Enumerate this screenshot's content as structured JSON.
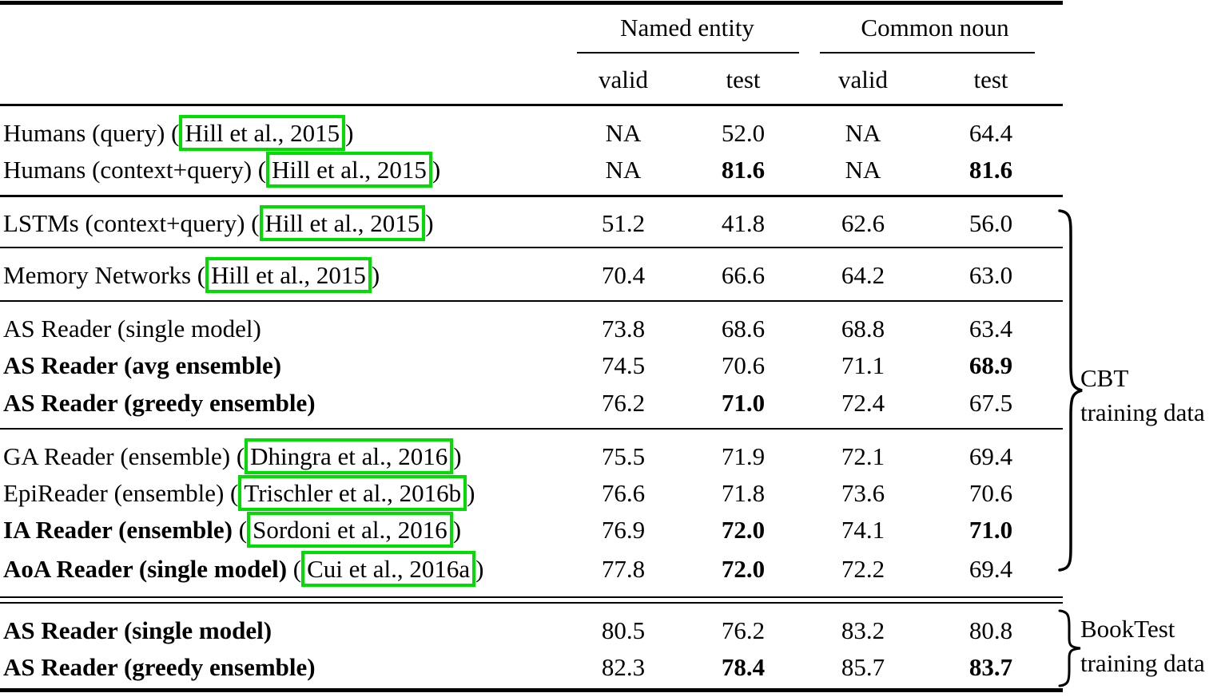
{
  "page": {
    "background_color": "#ffffff",
    "text_color": "#000000",
    "highlight_color": "#00dd00"
  },
  "table": {
    "col_groups": [
      {
        "label": "Named entity"
      },
      {
        "label": "Common noun"
      }
    ],
    "sub_headers": [
      "valid",
      "test",
      "valid",
      "test"
    ],
    "rows": [
      {
        "name": "Humans (query)",
        "name_bold": false,
        "cite": "Hill et al., 2015",
        "values": [
          "NA",
          "52.0",
          "NA",
          "64.4"
        ],
        "values_bold": [
          false,
          false,
          false,
          false
        ]
      },
      {
        "name": "Humans (context+query)",
        "name_bold": false,
        "cite": "Hill et al., 2015",
        "values": [
          "NA",
          "81.6",
          "NA",
          "81.6"
        ],
        "values_bold": [
          false,
          true,
          false,
          true
        ]
      },
      {
        "name": "LSTMs (context+query)",
        "name_bold": false,
        "cite": "Hill et al., 2015",
        "values": [
          "51.2",
          "41.8",
          "62.6",
          "56.0"
        ],
        "values_bold": [
          false,
          false,
          false,
          false
        ]
      },
      {
        "name": "Memory Networks",
        "name_bold": false,
        "cite": "Hill et al., 2015",
        "values": [
          "70.4",
          "66.6",
          "64.2",
          "63.0"
        ],
        "values_bold": [
          false,
          false,
          false,
          false
        ]
      },
      {
        "name": "AS Reader (single model)",
        "name_bold": false,
        "cite": null,
        "values": [
          "73.8",
          "68.6",
          "68.8",
          "63.4"
        ],
        "values_bold": [
          false,
          false,
          false,
          false
        ]
      },
      {
        "name": "AS Reader (avg ensemble)",
        "name_bold": true,
        "cite": null,
        "values": [
          "74.5",
          "70.6",
          "71.1",
          "68.9"
        ],
        "values_bold": [
          false,
          false,
          false,
          true
        ]
      },
      {
        "name": "AS Reader (greedy ensemble)",
        "name_bold": true,
        "cite": null,
        "values": [
          "76.2",
          "71.0",
          "72.4",
          "67.5"
        ],
        "values_bold": [
          false,
          true,
          false,
          false
        ]
      },
      {
        "name": "GA Reader (ensemble)",
        "name_bold": false,
        "cite": "Dhingra et al., 2016",
        "values": [
          "75.5",
          "71.9",
          "72.1",
          "69.4"
        ],
        "values_bold": [
          false,
          false,
          false,
          false
        ]
      },
      {
        "name": "EpiReader (ensemble)",
        "name_bold": false,
        "cite": "Trischler et al., 2016b",
        "values": [
          "76.6",
          "71.8",
          "73.6",
          "70.6"
        ],
        "values_bold": [
          false,
          false,
          false,
          false
        ]
      },
      {
        "name": "IA Reader (ensemble)",
        "name_bold": true,
        "cite": "Sordoni et al., 2016",
        "values": [
          "76.9",
          "72.0",
          "74.1",
          "71.0"
        ],
        "values_bold": [
          false,
          true,
          false,
          true
        ]
      },
      {
        "name": "AoA Reader (single model)",
        "name_bold": true,
        "cite": "Cui et al., 2016a",
        "values": [
          "77.8",
          "72.0",
          "72.2",
          "69.4"
        ],
        "values_bold": [
          false,
          true,
          false,
          false
        ]
      },
      {
        "name": "AS Reader (single model)",
        "name_bold": true,
        "cite": null,
        "values": [
          "80.5",
          "76.2",
          "83.2",
          "80.8"
        ],
        "values_bold": [
          false,
          false,
          false,
          false
        ]
      },
      {
        "name": "AS Reader (greedy ensemble)",
        "name_bold": true,
        "cite": null,
        "values": [
          "82.3",
          "78.4",
          "85.7",
          "83.7"
        ],
        "values_bold": [
          false,
          true,
          false,
          true
        ]
      }
    ]
  },
  "annotations": {
    "cbt": {
      "lines": [
        "CBT",
        "training data"
      ]
    },
    "booktest": {
      "lines": [
        "BookTest",
        "training data"
      ]
    }
  }
}
